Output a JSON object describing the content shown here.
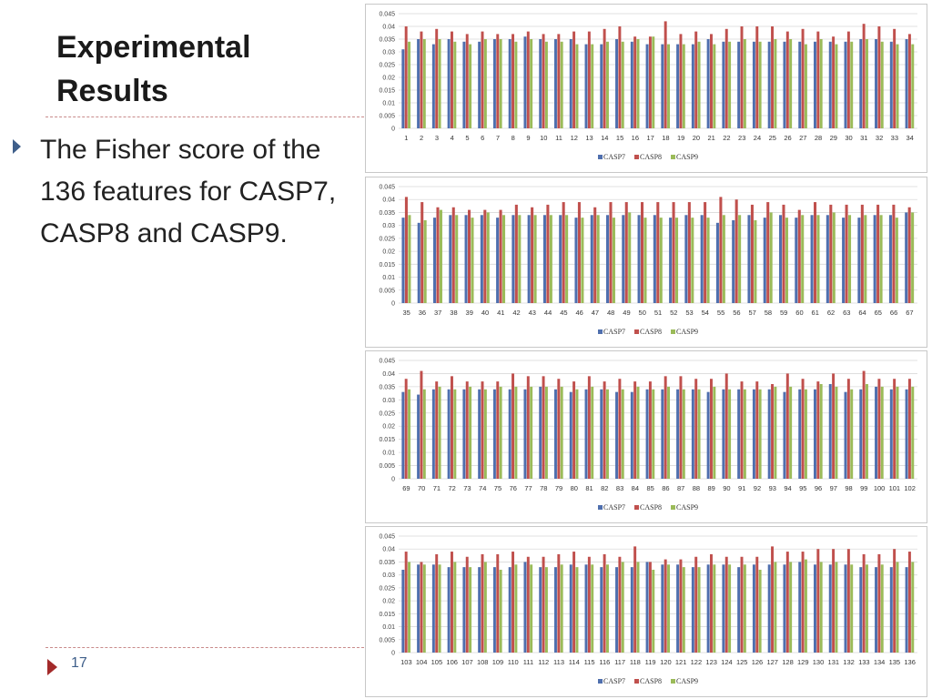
{
  "slide": {
    "title": "Experimental Results",
    "bullet": "The Fisher score of the 136 features for CASP7, CASP8 and CASP9.",
    "page_number": "17"
  },
  "colors": {
    "CASP7": "#4f6fae",
    "CASP8": "#c0504d",
    "CASP9": "#9bbb59",
    "grid": "#d9d9d9"
  },
  "chart_data": [
    {
      "type": "bar",
      "title": "",
      "xlabel": "",
      "ylabel": "",
      "ylim": [
        0,
        0.045
      ],
      "yticks": [
        "0",
        "0.005",
        "0.01",
        "0.015",
        "0.02",
        "0.025",
        "0.03",
        "0.035",
        "0.04",
        "0.045"
      ],
      "grid": true,
      "legend_position": "bottom",
      "categories": [
        "1",
        "2",
        "3",
        "4",
        "5",
        "6",
        "7",
        "8",
        "9",
        "10",
        "11",
        "12",
        "13",
        "14",
        "15",
        "16",
        "17",
        "18",
        "19",
        "20",
        "21",
        "22",
        "23",
        "24",
        "25",
        "26",
        "27",
        "28",
        "29",
        "30",
        "31",
        "32",
        "33",
        "34"
      ],
      "series": [
        {
          "name": "CASP7",
          "values": [
            0.031,
            0.035,
            0.033,
            0.035,
            0.034,
            0.034,
            0.035,
            0.035,
            0.036,
            0.035,
            0.035,
            0.035,
            0.033,
            0.033,
            0.035,
            0.034,
            0.033,
            0.033,
            0.033,
            0.033,
            0.035,
            0.034,
            0.034,
            0.034,
            0.034,
            0.034,
            0.034,
            0.034,
            0.034,
            0.034,
            0.035,
            0.035,
            0.034,
            0.035
          ]
        },
        {
          "name": "CASP8",
          "values": [
            0.04,
            0.038,
            0.039,
            0.038,
            0.037,
            0.038,
            0.037,
            0.037,
            0.038,
            0.037,
            0.037,
            0.038,
            0.038,
            0.039,
            0.04,
            0.036,
            0.036,
            0.042,
            0.037,
            0.038,
            0.037,
            0.039,
            0.04,
            0.04,
            0.04,
            0.038,
            0.039,
            0.038,
            0.036,
            0.038,
            0.041,
            0.04,
            0.039,
            0.037
          ]
        },
        {
          "name": "CASP9",
          "values": [
            0.034,
            0.035,
            0.035,
            0.034,
            0.033,
            0.035,
            0.035,
            0.034,
            0.035,
            0.034,
            0.034,
            0.033,
            0.033,
            0.034,
            0.034,
            0.035,
            0.036,
            0.033,
            0.033,
            0.034,
            0.033,
            0.034,
            0.035,
            0.034,
            0.035,
            0.035,
            0.033,
            0.035,
            0.033,
            0.034,
            0.035,
            0.034,
            0.033,
            0.033
          ]
        }
      ]
    },
    {
      "type": "bar",
      "title": "",
      "xlabel": "",
      "ylabel": "",
      "ylim": [
        0,
        0.045
      ],
      "yticks": [
        "0",
        "0.005",
        "0.01",
        "0.015",
        "0.02",
        "0.025",
        "0.03",
        "0.035",
        "0.04",
        "0.045"
      ],
      "grid": true,
      "legend_position": "bottom",
      "categories": [
        "35",
        "36",
        "37",
        "38",
        "39",
        "40",
        "41",
        "42",
        "43",
        "44",
        "45",
        "46",
        "47",
        "48",
        "49",
        "50",
        "51",
        "52",
        "53",
        "54",
        "55",
        "56",
        "57",
        "58",
        "59",
        "60",
        "61",
        "62",
        "63",
        "64",
        "65",
        "66",
        "67"
      ],
      "series": [
        {
          "name": "CASP7",
          "values": [
            0.033,
            0.031,
            0.033,
            0.034,
            0.034,
            0.034,
            0.033,
            0.034,
            0.034,
            0.034,
            0.034,
            0.033,
            0.034,
            0.034,
            0.034,
            0.034,
            0.034,
            0.033,
            0.034,
            0.034,
            0.031,
            0.032,
            0.034,
            0.033,
            0.034,
            0.033,
            0.034,
            0.034,
            0.033,
            0.033,
            0.034,
            0.034,
            0.035
          ]
        },
        {
          "name": "CASP8",
          "values": [
            0.041,
            0.039,
            0.037,
            0.037,
            0.036,
            0.036,
            0.036,
            0.038,
            0.037,
            0.038,
            0.039,
            0.039,
            0.037,
            0.039,
            0.039,
            0.039,
            0.039,
            0.039,
            0.039,
            0.039,
            0.041,
            0.04,
            0.038,
            0.039,
            0.038,
            0.036,
            0.039,
            0.038,
            0.038,
            0.038,
            0.038,
            0.038,
            0.037
          ]
        },
        {
          "name": "CASP9",
          "values": [
            0.034,
            0.032,
            0.036,
            0.034,
            0.033,
            0.035,
            0.034,
            0.034,
            0.034,
            0.034,
            0.034,
            0.033,
            0.034,
            0.033,
            0.035,
            0.033,
            0.033,
            0.033,
            0.033,
            0.033,
            0.034,
            0.034,
            0.032,
            0.035,
            0.033,
            0.034,
            0.034,
            0.035,
            0.034,
            0.034,
            0.034,
            0.033,
            0.035
          ]
        }
      ]
    },
    {
      "type": "bar",
      "title": "",
      "xlabel": "",
      "ylabel": "",
      "ylim": [
        0,
        0.045
      ],
      "yticks": [
        "0",
        "0.005",
        "0.01",
        "0.015",
        "0.02",
        "0.025",
        "0.03",
        "0.035",
        "0.04",
        "0.045"
      ],
      "grid": true,
      "legend_position": "bottom",
      "categories": [
        "69",
        "70",
        "71",
        "72",
        "73",
        "74",
        "75",
        "76",
        "77",
        "78",
        "79",
        "80",
        "81",
        "82",
        "83",
        "84",
        "85",
        "86",
        "87",
        "88",
        "89",
        "90",
        "91",
        "92",
        "93",
        "94",
        "95",
        "96",
        "97",
        "98",
        "99",
        "100",
        "101",
        "102"
      ],
      "series": [
        {
          "name": "CASP7",
          "values": [
            0.033,
            0.032,
            0.034,
            0.034,
            0.034,
            0.034,
            0.034,
            0.034,
            0.034,
            0.035,
            0.034,
            0.033,
            0.034,
            0.034,
            0.033,
            0.033,
            0.034,
            0.034,
            0.034,
            0.034,
            0.033,
            0.034,
            0.034,
            0.034,
            0.034,
            0.033,
            0.034,
            0.034,
            0.036,
            0.033,
            0.034,
            0.035,
            0.034,
            0.034
          ]
        },
        {
          "name": "CASP8",
          "values": [
            0.038,
            0.041,
            0.037,
            0.039,
            0.037,
            0.037,
            0.037,
            0.04,
            0.039,
            0.039,
            0.038,
            0.037,
            0.039,
            0.037,
            0.038,
            0.037,
            0.037,
            0.039,
            0.039,
            0.038,
            0.038,
            0.04,
            0.037,
            0.037,
            0.036,
            0.04,
            0.038,
            0.037,
            0.04,
            0.038,
            0.041,
            0.038,
            0.038,
            0.038
          ]
        },
        {
          "name": "CASP9",
          "values": [
            0.034,
            0.034,
            0.035,
            0.034,
            0.035,
            0.034,
            0.035,
            0.035,
            0.035,
            0.035,
            0.035,
            0.034,
            0.035,
            0.034,
            0.034,
            0.035,
            0.034,
            0.035,
            0.034,
            0.034,
            0.035,
            0.034,
            0.034,
            0.034,
            0.035,
            0.035,
            0.034,
            0.036,
            0.035,
            0.034,
            0.036,
            0.035,
            0.035,
            0.035
          ]
        }
      ]
    },
    {
      "type": "bar",
      "title": "",
      "xlabel": "",
      "ylabel": "",
      "ylim": [
        0,
        0.045
      ],
      "yticks": [
        "0",
        "0.005",
        "0.01",
        "0.015",
        "0.02",
        "0.025",
        "0.03",
        "0.035",
        "0.04",
        "0.045"
      ],
      "grid": true,
      "legend_position": "bottom",
      "categories": [
        "103",
        "104",
        "105",
        "106",
        "107",
        "108",
        "109",
        "110",
        "111",
        "112",
        "113",
        "114",
        "115",
        "116",
        "117",
        "118",
        "119",
        "120",
        "121",
        "122",
        "123",
        "124",
        "125",
        "126",
        "127",
        "128",
        "129",
        "130",
        "131",
        "132",
        "133",
        "134",
        "135",
        "136"
      ],
      "series": [
        {
          "name": "CASP7",
          "values": [
            0.032,
            0.034,
            0.034,
            0.033,
            0.033,
            0.033,
            0.033,
            0.033,
            0.035,
            0.033,
            0.033,
            0.034,
            0.034,
            0.033,
            0.033,
            0.033,
            0.035,
            0.034,
            0.034,
            0.033,
            0.034,
            0.034,
            0.033,
            0.034,
            0.034,
            0.034,
            0.035,
            0.034,
            0.034,
            0.034,
            0.033,
            0.033,
            0.033,
            0.033
          ]
        },
        {
          "name": "CASP8",
          "values": [
            0.039,
            0.035,
            0.038,
            0.039,
            0.037,
            0.038,
            0.038,
            0.039,
            0.037,
            0.037,
            0.038,
            0.039,
            0.037,
            0.038,
            0.037,
            0.041,
            0.035,
            0.036,
            0.036,
            0.037,
            0.038,
            0.037,
            0.037,
            0.037,
            0.041,
            0.039,
            0.039,
            0.04,
            0.04,
            0.04,
            0.038,
            0.038,
            0.04,
            0.039
          ]
        },
        {
          "name": "CASP9",
          "values": [
            0.035,
            0.034,
            0.034,
            0.035,
            0.033,
            0.035,
            0.032,
            0.034,
            0.034,
            0.033,
            0.034,
            0.033,
            0.034,
            0.034,
            0.035,
            0.035,
            0.032,
            0.034,
            0.033,
            0.033,
            0.034,
            0.034,
            0.034,
            0.032,
            0.035,
            0.035,
            0.036,
            0.035,
            0.035,
            0.034,
            0.034,
            0.034,
            0.035,
            0.035
          ]
        }
      ]
    }
  ]
}
